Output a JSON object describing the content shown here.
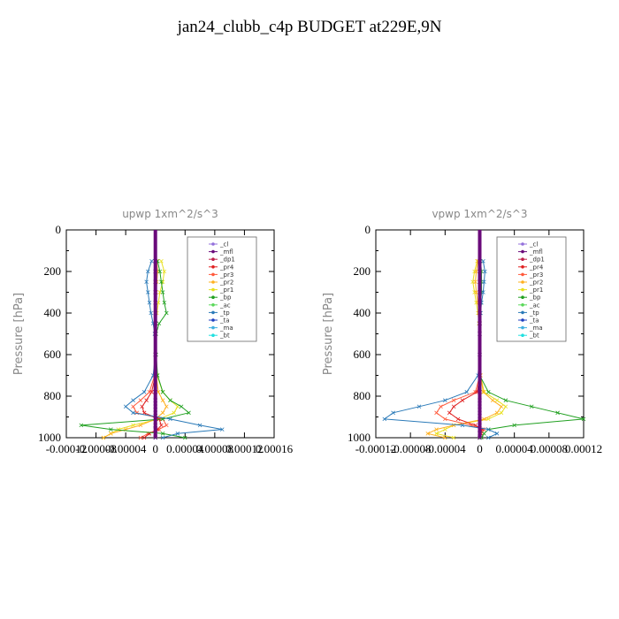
{
  "title": "jan24_clubb_c4p  BUDGET at229E,9N",
  "legend_entries": [
    "_cl",
    "_mfl",
    "_dp1",
    "_pr4",
    "_pr3",
    "_pr2",
    "_pr1",
    "_bp",
    "_ac",
    "_tp",
    "_ta",
    "_ma",
    "_bt"
  ],
  "colors": {
    "_cl": "#9370db",
    "_mfl": "#6a0a7a",
    "_dp1": "#c0204a",
    "_pr4": "#e02020",
    "_pr3": "#ff5a3c",
    "_pr2": "#ffb020",
    "_pr1": "#e8e020",
    "_bp": "#20a020",
    "_ac": "#5ad85a",
    "_tp": "#2a7ab8",
    "_ta": "#2040c0",
    "_ma": "#40b0e0",
    "_bt": "#20e0e0"
  },
  "chart_data": [
    {
      "type": "line",
      "title": "upwp    1xm^2/s^3",
      "ylabel": "Pressure [hPa]",
      "ylim": [
        1000,
        0
      ],
      "xlim": [
        -0.00012,
        0.00016
      ],
      "xticks": [
        "-0.00012",
        "-0.00008",
        "-0.00004",
        "0",
        "0.00004",
        "0.00008",
        "0.00012",
        "0.00016"
      ],
      "yticks": [
        "0",
        "200",
        "400",
        "600",
        "800",
        "1000"
      ],
      "legend": "top-right",
      "pressure": [
        150,
        200,
        250,
        300,
        350,
        400,
        450,
        500,
        600,
        700,
        780,
        820,
        850,
        880,
        910,
        940,
        960,
        980,
        1000
      ],
      "series": [
        {
          "name": "_pr1",
          "values": [
            8e-06,
            1.2e-05,
            1e-05,
            6e-06,
            4e-06,
            2e-06,
            1e-06,
            0,
            0,
            2e-06,
            1e-05,
            2e-05,
            3e-05,
            2.5e-05,
            5e-06,
            -3e-05,
            -5e-05,
            -6e-05,
            -7e-05
          ]
        },
        {
          "name": "_pr2",
          "values": [
            2e-06,
            3e-06,
            2e-06,
            1e-06,
            0,
            0,
            0,
            0,
            0,
            1e-06,
            4e-06,
            1e-05,
            1.5e-05,
            1e-05,
            0,
            -2e-05,
            -4e-05,
            -6e-05,
            -7e-05
          ]
        },
        {
          "name": "_pr3",
          "values": [
            0,
            0,
            0,
            0,
            0,
            0,
            0,
            0,
            0,
            -1e-06,
            -8e-06,
            -2e-05,
            -3e-05,
            -2.5e-05,
            1e-05,
            1.5e-05,
            5e-06,
            -1e-05,
            -2e-05
          ]
        },
        {
          "name": "_pr4",
          "values": [
            0,
            0,
            0,
            0,
            0,
            0,
            0,
            0,
            0,
            0,
            -5e-06,
            -1.2e-05,
            -1.8e-05,
            -1.5e-05,
            5e-06,
            8e-06,
            3e-06,
            -8e-06,
            -1.5e-05
          ]
        },
        {
          "name": "_bp",
          "values": [
            3e-06,
            6e-06,
            8e-06,
            1e-05,
            1.2e-05,
            1.5e-05,
            5e-06,
            1e-06,
            1e-06,
            3e-06,
            1e-05,
            2e-05,
            3.5e-05,
            4.5e-05,
            1e-05,
            -0.0001,
            -6e-05,
            1e-05,
            4e-05
          ]
        },
        {
          "name": "_tp",
          "values": [
            -5e-06,
            -1e-05,
            -1.2e-05,
            -1e-05,
            -8e-06,
            -6e-06,
            -3e-06,
            -1e-06,
            0,
            -3e-06,
            -1.5e-05,
            -3e-05,
            -4e-05,
            -3e-05,
            2e-05,
            6e-05,
            9e-05,
            3e-05,
            1e-05
          ]
        },
        {
          "name": "_ta",
          "values": [
            0,
            0,
            0,
            0,
            0,
            0,
            0,
            0,
            0,
            0,
            0,
            0,
            0,
            0,
            0,
            0,
            0,
            0,
            0
          ]
        },
        {
          "name": "_mfl",
          "values": [
            0,
            0,
            0,
            0,
            0,
            0,
            0,
            0,
            0,
            0,
            0,
            0,
            0,
            0,
            0,
            0,
            0,
            0,
            0
          ]
        }
      ]
    },
    {
      "type": "line",
      "title": "vpwp    1xm^2/s^3",
      "ylabel": "Pressure [hPa]",
      "ylim": [
        1000,
        0
      ],
      "xlim": [
        -0.00012,
        0.00012
      ],
      "xticks": [
        "-0.00012",
        "-0.00008",
        "-0.00004",
        "0",
        "0.00004",
        "0.00008",
        "0.00012"
      ],
      "yticks": [
        "0",
        "200",
        "400",
        "600",
        "800",
        "1000"
      ],
      "legend": "top-right",
      "pressure": [
        150,
        200,
        250,
        300,
        350,
        400,
        450,
        500,
        600,
        700,
        780,
        820,
        850,
        880,
        910,
        940,
        960,
        980,
        1000
      ],
      "series": [
        {
          "name": "_pr1",
          "values": [
            -3e-06,
            -6e-06,
            -8e-06,
            -6e-06,
            -4e-06,
            -2e-06,
            -1e-06,
            0,
            0,
            1e-06,
            5e-06,
            2e-05,
            3e-05,
            2.5e-05,
            1e-05,
            -3e-05,
            -4e-05,
            -5e-05,
            -3e-05
          ]
        },
        {
          "name": "_pr2",
          "values": [
            -2e-06,
            -4e-06,
            -5e-06,
            -4e-06,
            -2e-06,
            -1e-06,
            0,
            0,
            0,
            1e-06,
            4e-06,
            1.5e-05,
            2.5e-05,
            2e-05,
            5e-06,
            -3e-05,
            -5e-05,
            -6e-05,
            -4e-05
          ]
        },
        {
          "name": "_pr3",
          "values": [
            0,
            0,
            0,
            0,
            0,
            0,
            0,
            0,
            0,
            0,
            -5e-06,
            -3e-05,
            -4.5e-05,
            -5e-05,
            -4e-05,
            -1e-05,
            5e-06,
            2e-06,
            0
          ]
        },
        {
          "name": "_pr4",
          "values": [
            0,
            0,
            0,
            0,
            0,
            0,
            0,
            0,
            0,
            0,
            -3e-06,
            -2e-05,
            -3e-05,
            -3.5e-05,
            -2.5e-05,
            -5e-06,
            3e-06,
            1e-06,
            0
          ]
        },
        {
          "name": "_bp",
          "values": [
            1e-06,
            2e-06,
            2e-06,
            2e-06,
            1e-06,
            1e-06,
            0,
            0,
            0,
            0,
            1e-05,
            3e-05,
            6e-05,
            9e-05,
            0.00012,
            4e-05,
            1e-05,
            5e-06,
            2e-06
          ]
        },
        {
          "name": "_tp",
          "values": [
            4e-06,
            6e-06,
            5e-06,
            4e-06,
            2e-06,
            1e-06,
            0,
            0,
            0,
            -2e-06,
            -1.5e-05,
            -4e-05,
            -7e-05,
            -0.0001,
            -0.00011,
            -2e-05,
            1e-05,
            2e-05,
            1e-05
          ]
        },
        {
          "name": "_ta",
          "values": [
            0,
            0,
            0,
            0,
            0,
            0,
            0,
            0,
            0,
            0,
            0,
            0,
            0,
            0,
            0,
            0,
            0,
            0,
            0
          ]
        },
        {
          "name": "_mfl",
          "values": [
            0,
            0,
            0,
            0,
            0,
            0,
            0,
            0,
            0,
            0,
            0,
            0,
            0,
            0,
            0,
            0,
            0,
            0,
            0
          ]
        }
      ]
    }
  ]
}
